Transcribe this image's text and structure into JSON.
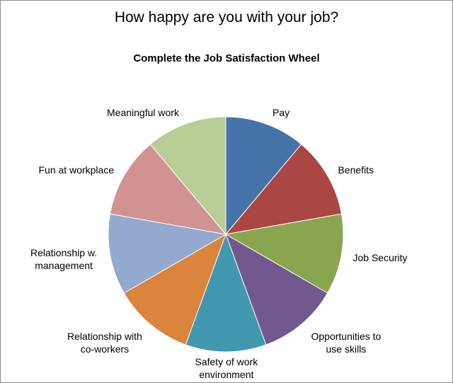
{
  "chart_data": {
    "type": "pie",
    "title": "How happy are you with your job?",
    "subtitle": "Complete the Job Satisfaction Wheel",
    "slices": [
      {
        "label": [
          "Pay"
        ],
        "value": 1,
        "color": "#4572a7"
      },
      {
        "label": [
          "Benefits"
        ],
        "value": 1,
        "color": "#aa4643"
      },
      {
        "label": [
          "Job Security"
        ],
        "value": 1,
        "color": "#89a54e"
      },
      {
        "label": [
          "Opportunities to",
          "use skills"
        ],
        "value": 1,
        "color": "#71588f"
      },
      {
        "label": [
          "Safety of  work",
          "environment"
        ],
        "value": 1,
        "color": "#4198af"
      },
      {
        "label": [
          "Relationship with",
          "co-workers"
        ],
        "value": 1,
        "color": "#db843d"
      },
      {
        "label": [
          "Relationship w.",
          "management"
        ],
        "value": 1,
        "color": "#93a9cf"
      },
      {
        "label": [
          "Fun at workplace"
        ],
        "value": 1,
        "color": "#d19392"
      },
      {
        "label": [
          "Meaningful work"
        ],
        "value": 1,
        "color": "#b9cd96"
      }
    ],
    "legend": "none"
  }
}
